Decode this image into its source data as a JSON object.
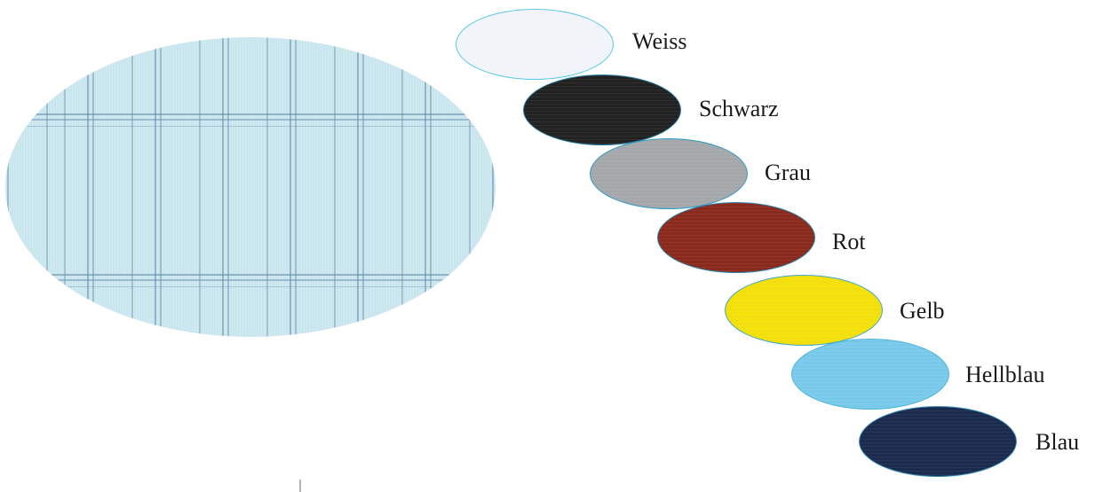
{
  "large_swatch": {
    "color": "#c9e5ee",
    "stripe_color": "#6a8fae",
    "pattern": "plaid"
  },
  "swatches": [
    {
      "label": "Weiss",
      "color": "#f1f4f9"
    },
    {
      "label": "Schwarz",
      "color": "#222222"
    },
    {
      "label": "Grau",
      "color": "#a5a8aa"
    },
    {
      "label": "Rot",
      "color": "#8a2a1c"
    },
    {
      "label": "Gelb",
      "color": "#f3df0a"
    },
    {
      "label": "Hellblau",
      "color": "#79caea"
    },
    {
      "label": "Blau",
      "color": "#1b2b4e"
    }
  ]
}
